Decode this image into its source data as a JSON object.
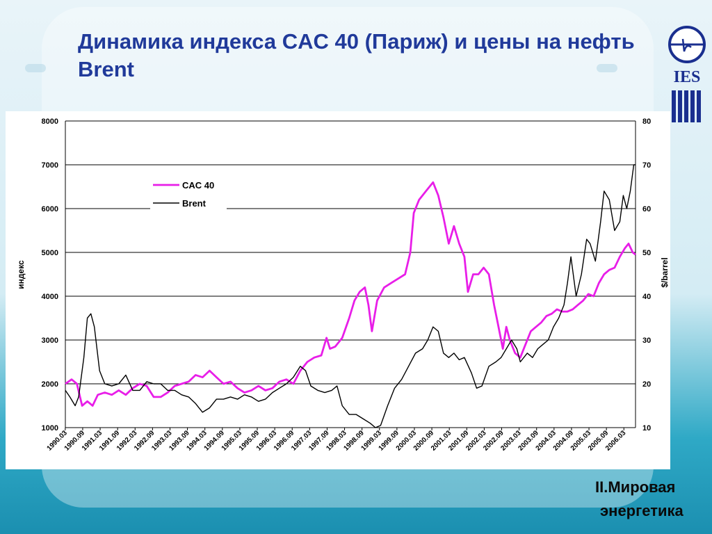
{
  "slide": {
    "title": "Динамика индекса CAC 40 (Париж) и цены на нефть Brent",
    "section_line1": "II.Мировая",
    "section_line2": "энергетика",
    "logo_text": "IES"
  },
  "colors": {
    "title": "#203a9a",
    "cac40": "#e81ee8",
    "brent": "#000000",
    "background": "#d4ecf4",
    "accent": "#2fa9c6"
  },
  "chart_data": {
    "type": "line",
    "title": "",
    "ylabel": "индекс",
    "y2label": "$/barrel",
    "ylim": [
      1000,
      8000
    ],
    "y2lim": [
      10,
      80
    ],
    "yticks": [
      1000,
      2000,
      3000,
      4000,
      5000,
      6000,
      7000,
      8000
    ],
    "y2ticks": [
      10,
      20,
      30,
      40,
      50,
      60,
      70,
      80
    ],
    "xlim": [
      1990.17,
      2006.5
    ],
    "xticks": [
      "1990.03",
      "1990.09",
      "1991.03",
      "1991.09",
      "1992.03",
      "1992.09",
      "1993.03",
      "1993.09",
      "1994.03",
      "1994.09",
      "1995.03",
      "1995.09",
      "1996.03",
      "1996.09",
      "1997.03",
      "1997.09",
      "1998.03",
      "1998.09",
      "1999.03",
      "1999.09",
      "2000.03",
      "2000.09",
      "2001.03",
      "2001.09",
      "2002.03",
      "2002.09",
      "2003.03",
      "2003.09",
      "2004.03",
      "2004.09",
      "2005.03",
      "2005.09",
      "2006.03"
    ],
    "grid": "horizontal",
    "legend_position": "top-left",
    "series": [
      {
        "name": "CAC 40",
        "axis": "left",
        "color": "#e81ee8",
        "points": [
          [
            1990.17,
            2000
          ],
          [
            1990.35,
            2100
          ],
          [
            1990.5,
            2000
          ],
          [
            1990.65,
            1500
          ],
          [
            1990.8,
            1600
          ],
          [
            1990.95,
            1500
          ],
          [
            1991.1,
            1750
          ],
          [
            1991.3,
            1800
          ],
          [
            1991.5,
            1750
          ],
          [
            1991.7,
            1850
          ],
          [
            1991.9,
            1750
          ],
          [
            1992.1,
            1900
          ],
          [
            1992.3,
            2000
          ],
          [
            1992.5,
            1950
          ],
          [
            1992.7,
            1700
          ],
          [
            1992.9,
            1700
          ],
          [
            1993.1,
            1800
          ],
          [
            1993.3,
            1950
          ],
          [
            1993.5,
            2000
          ],
          [
            1993.7,
            2050
          ],
          [
            1993.9,
            2200
          ],
          [
            1994.1,
            2150
          ],
          [
            1994.3,
            2300
          ],
          [
            1994.5,
            2150
          ],
          [
            1994.7,
            2000
          ],
          [
            1994.9,
            2050
          ],
          [
            1995.1,
            1900
          ],
          [
            1995.3,
            1800
          ],
          [
            1995.5,
            1850
          ],
          [
            1995.7,
            1950
          ],
          [
            1995.9,
            1850
          ],
          [
            1996.1,
            1900
          ],
          [
            1996.3,
            2050
          ],
          [
            1996.5,
            2100
          ],
          [
            1996.7,
            2000
          ],
          [
            1996.9,
            2300
          ],
          [
            1997.1,
            2500
          ],
          [
            1997.3,
            2600
          ],
          [
            1997.5,
            2650
          ],
          [
            1997.65,
            3050
          ],
          [
            1997.75,
            2800
          ],
          [
            1997.9,
            2850
          ],
          [
            1998.1,
            3050
          ],
          [
            1998.3,
            3500
          ],
          [
            1998.45,
            3900
          ],
          [
            1998.6,
            4100
          ],
          [
            1998.75,
            4200
          ],
          [
            1998.85,
            3800
          ],
          [
            1998.95,
            3200
          ],
          [
            1999.1,
            3900
          ],
          [
            1999.3,
            4200
          ],
          [
            1999.5,
            4300
          ],
          [
            1999.7,
            4400
          ],
          [
            1999.9,
            4500
          ],
          [
            2000.05,
            5000
          ],
          [
            2000.15,
            5900
          ],
          [
            2000.3,
            6200
          ],
          [
            2000.5,
            6400
          ],
          [
            2000.7,
            6600
          ],
          [
            2000.85,
            6300
          ],
          [
            2001.0,
            5800
          ],
          [
            2001.15,
            5200
          ],
          [
            2001.3,
            5600
          ],
          [
            2001.45,
            5200
          ],
          [
            2001.6,
            4900
          ],
          [
            2001.7,
            4100
          ],
          [
            2001.85,
            4500
          ],
          [
            2002.0,
            4500
          ],
          [
            2002.15,
            4650
          ],
          [
            2002.3,
            4500
          ],
          [
            2002.45,
            3800
          ],
          [
            2002.55,
            3400
          ],
          [
            2002.7,
            2800
          ],
          [
            2002.8,
            3300
          ],
          [
            2002.9,
            3000
          ],
          [
            2003.05,
            2700
          ],
          [
            2003.2,
            2600
          ],
          [
            2003.35,
            2900
          ],
          [
            2003.5,
            3200
          ],
          [
            2003.65,
            3300
          ],
          [
            2003.8,
            3400
          ],
          [
            2003.95,
            3550
          ],
          [
            2004.1,
            3600
          ],
          [
            2004.25,
            3700
          ],
          [
            2004.4,
            3650
          ],
          [
            2004.55,
            3650
          ],
          [
            2004.7,
            3700
          ],
          [
            2004.85,
            3800
          ],
          [
            2005.0,
            3900
          ],
          [
            2005.15,
            4050
          ],
          [
            2005.3,
            4000
          ],
          [
            2005.45,
            4300
          ],
          [
            2005.6,
            4500
          ],
          [
            2005.75,
            4600
          ],
          [
            2005.9,
            4650
          ],
          [
            2006.05,
            4900
          ],
          [
            2006.2,
            5100
          ],
          [
            2006.3,
            5200
          ],
          [
            2006.42,
            5000
          ],
          [
            2006.5,
            4950
          ]
        ]
      },
      {
        "name": "Brent",
        "axis": "right",
        "color": "#000000",
        "points": [
          [
            1990.17,
            18.5
          ],
          [
            1990.3,
            17
          ],
          [
            1990.45,
            15
          ],
          [
            1990.55,
            17
          ],
          [
            1990.7,
            26
          ],
          [
            1990.8,
            35
          ],
          [
            1990.9,
            36
          ],
          [
            1991.0,
            33
          ],
          [
            1991.15,
            23
          ],
          [
            1991.3,
            20
          ],
          [
            1991.5,
            19.5
          ],
          [
            1991.7,
            20
          ],
          [
            1991.9,
            22
          ],
          [
            1992.1,
            18.5
          ],
          [
            1992.3,
            18.5
          ],
          [
            1992.5,
            20.5
          ],
          [
            1992.7,
            20
          ],
          [
            1992.9,
            20
          ],
          [
            1993.1,
            18.5
          ],
          [
            1993.3,
            18.5
          ],
          [
            1993.5,
            17.5
          ],
          [
            1993.7,
            17
          ],
          [
            1993.9,
            15.5
          ],
          [
            1994.1,
            13.5
          ],
          [
            1994.3,
            14.5
          ],
          [
            1994.5,
            16.5
          ],
          [
            1994.7,
            16.5
          ],
          [
            1994.9,
            17
          ],
          [
            1995.1,
            16.5
          ],
          [
            1995.3,
            17.5
          ],
          [
            1995.5,
            17
          ],
          [
            1995.7,
            16
          ],
          [
            1995.9,
            16.5
          ],
          [
            1996.1,
            18
          ],
          [
            1996.3,
            19
          ],
          [
            1996.5,
            20
          ],
          [
            1996.7,
            21.5
          ],
          [
            1996.9,
            24
          ],
          [
            1997.05,
            23
          ],
          [
            1997.2,
            19.5
          ],
          [
            1997.4,
            18.5
          ],
          [
            1997.6,
            18
          ],
          [
            1997.8,
            18.5
          ],
          [
            1997.95,
            19.5
          ],
          [
            1998.1,
            15
          ],
          [
            1998.3,
            13
          ],
          [
            1998.5,
            13
          ],
          [
            1998.7,
            12
          ],
          [
            1998.9,
            11
          ],
          [
            1999.05,
            10
          ],
          [
            1999.2,
            10.5
          ],
          [
            1999.4,
            15
          ],
          [
            1999.6,
            19
          ],
          [
            1999.8,
            21
          ],
          [
            2000.0,
            24
          ],
          [
            2000.2,
            27
          ],
          [
            2000.4,
            28
          ],
          [
            2000.55,
            30
          ],
          [
            2000.7,
            33
          ],
          [
            2000.85,
            32
          ],
          [
            2001.0,
            27
          ],
          [
            2001.15,
            26
          ],
          [
            2001.3,
            27
          ],
          [
            2001.45,
            25.5
          ],
          [
            2001.6,
            26
          ],
          [
            2001.8,
            22.5
          ],
          [
            2001.95,
            19
          ],
          [
            2002.1,
            19.5
          ],
          [
            2002.3,
            24
          ],
          [
            2002.5,
            25
          ],
          [
            2002.65,
            26
          ],
          [
            2002.8,
            28
          ],
          [
            2002.95,
            30
          ],
          [
            2003.1,
            28
          ],
          [
            2003.2,
            25
          ],
          [
            2003.4,
            27
          ],
          [
            2003.55,
            26
          ],
          [
            2003.7,
            28
          ],
          [
            2003.85,
            29
          ],
          [
            2004.0,
            30
          ],
          [
            2004.15,
            33
          ],
          [
            2004.3,
            35
          ],
          [
            2004.45,
            38
          ],
          [
            2004.55,
            43
          ],
          [
            2004.65,
            49
          ],
          [
            2004.8,
            40
          ],
          [
            2004.95,
            45
          ],
          [
            2005.1,
            53
          ],
          [
            2005.2,
            52
          ],
          [
            2005.35,
            48
          ],
          [
            2005.5,
            57
          ],
          [
            2005.6,
            64
          ],
          [
            2005.75,
            62
          ],
          [
            2005.9,
            55
          ],
          [
            2006.05,
            57
          ],
          [
            2006.15,
            63
          ],
          [
            2006.25,
            60
          ],
          [
            2006.35,
            64
          ],
          [
            2006.45,
            70
          ],
          [
            2006.5,
            70
          ]
        ]
      }
    ]
  }
}
